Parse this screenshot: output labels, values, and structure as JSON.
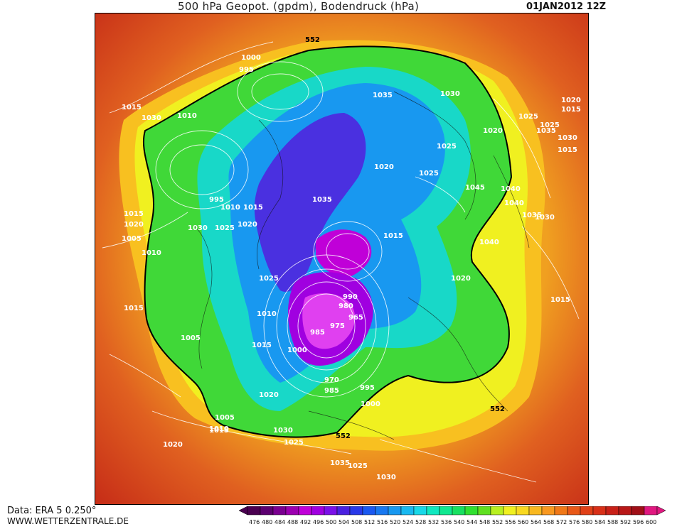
{
  "header": {
    "title": "500 hPa Geopot. (gpdm), Bodendruck (hPa)",
    "date": "01JAN2012 12Z"
  },
  "footer": {
    "data_source": "Data: ERA 5 0.250°",
    "website": "WWW.WETTERZENTRALE.DE"
  },
  "legend": {
    "values": [
      "476",
      "480",
      "484",
      "488",
      "492",
      "496",
      "500",
      "504",
      "508",
      "512",
      "516",
      "520",
      "524",
      "528",
      "532",
      "536",
      "540",
      "544",
      "548",
      "552",
      "556",
      "560",
      "564",
      "568",
      "572",
      "576",
      "580",
      "584",
      "588",
      "592",
      "596",
      "600"
    ],
    "colors": [
      "#4a0050",
      "#5c0070",
      "#7a0090",
      "#9c00b0",
      "#c000d8",
      "#a000e0",
      "#7a10e8",
      "#4a20e0",
      "#2838e8",
      "#1a58f0",
      "#1878f0",
      "#1898f0",
      "#18b8f0",
      "#18d8e8",
      "#10e8c0",
      "#10e890",
      "#18e060",
      "#30e030",
      "#60e020",
      "#b8f020",
      "#f0f020",
      "#f8d820",
      "#f8b820",
      "#f89820",
      "#f07818",
      "#e85818",
      "#e04018",
      "#d83018",
      "#c82018",
      "#b81818",
      "#a01018",
      "#e01880"
    ]
  },
  "map": {
    "geopotential_contour_label": "552",
    "isobar_labels": [
      "1015",
      "1000",
      "995",
      "1010",
      "1020",
      "1025",
      "1030",
      "1015",
      "1020",
      "1030",
      "1035",
      "1025",
      "1020",
      "1035",
      "1030",
      "1040",
      "1025",
      "1015",
      "1035",
      "1005",
      "1030",
      "1010",
      "1015",
      "1025",
      "1020",
      "1035",
      "1030",
      "1015",
      "1020",
      "1025",
      "1015",
      "1010",
      "1005",
      "1015",
      "1040",
      "995",
      "990",
      "980",
      "975",
      "985",
      "965",
      "1000",
      "970",
      "985",
      "995",
      "1000",
      "1005",
      "1010",
      "1020",
      "1015",
      "1030",
      "1025",
      "1020",
      "1035",
      "1030",
      "1025",
      "1020",
      "1015",
      "1010",
      "1015",
      "1045",
      "1040",
      "1025"
    ]
  }
}
